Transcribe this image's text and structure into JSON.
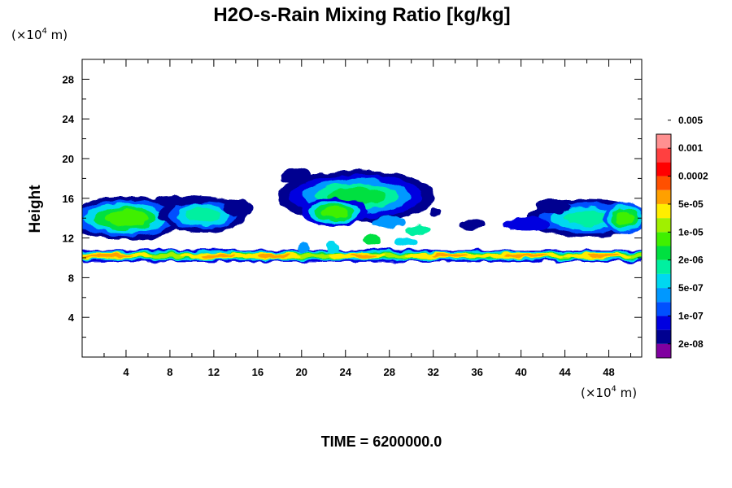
{
  "chart_data": {
    "type": "heatmap",
    "title": "H2O-s-Rain Mixing Ratio [kg/kg]",
    "ylabel": "Height",
    "x_unit": {
      "prefix": "(×10",
      "exp": "4",
      "suffix": " m)"
    },
    "y_unit": {
      "prefix": "(×10",
      "exp": "4",
      "suffix": " m)"
    },
    "xlim": [
      0,
      51
    ],
    "ylim": [
      0,
      30
    ],
    "x_ticks": [
      4,
      8,
      12,
      16,
      20,
      24,
      28,
      32,
      36,
      40,
      44,
      48
    ],
    "x_tick_labels": [
      "4",
      "8",
      "12",
      "16",
      "20",
      "24",
      "28",
      "32",
      "36",
      "40",
      "44",
      "48"
    ],
    "y_ticks": [
      4,
      8,
      12,
      16,
      20,
      24,
      28
    ],
    "y_tick_labels": [
      "4",
      "8",
      "12",
      "16",
      "20",
      "24",
      "28"
    ],
    "colorbar": {
      "colors": [
        "#8000a0",
        "#000090",
        "#0000e0",
        "#0050ff",
        "#0098ff",
        "#00d8f0",
        "#00f0a0",
        "#00e040",
        "#40f000",
        "#a0f000",
        "#ffee00",
        "#ffa000",
        "#ff5000",
        "#ff0000",
        "#ff4040",
        "#ff9090"
      ],
      "labels": [
        "2e-08",
        "1e-07",
        "5e-07",
        "2e-06",
        "1e-05",
        "5e-05",
        "0.0002",
        "0.001",
        "0.005"
      ]
    },
    "regions": [
      {
        "name": "melting-layer",
        "x_range": [
          0,
          51
        ],
        "y_range": [
          9.6,
          10.8
        ],
        "peak_level": 11
      },
      {
        "name": "anvil-left",
        "x_range": [
          0,
          15.5
        ],
        "y_range": [
          12.2,
          16.5
        ],
        "peak_level": 8
      },
      {
        "name": "anvil-center",
        "x_range": [
          17,
          33
        ],
        "y_range": [
          12.5,
          19.5
        ],
        "peak_level": 8
      },
      {
        "name": "anvil-right",
        "x_range": [
          34,
          51
        ],
        "y_range": [
          12.2,
          16.3
        ],
        "peak_level": 8
      }
    ],
    "time_label": "TIME = 6200000.0"
  }
}
